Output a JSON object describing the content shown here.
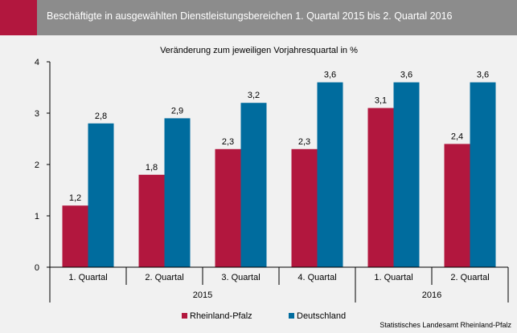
{
  "header": {
    "title": "Beschäftigte in ausgewählten Dienstleistungsbereichen 1. Quartal 2015 bis 2. Quartal 2016"
  },
  "chart_data": {
    "type": "bar",
    "title": "Veränderung zum jeweiligen Vorjahresquartal in %",
    "categories": [
      "1. Quartal",
      "2. Quartal",
      "3. Quartal",
      "4. Quartal",
      "1. Quartal",
      "2. Quartal"
    ],
    "groups": [
      {
        "label": "2015",
        "span": 4
      },
      {
        "label": "2016",
        "span": 2
      }
    ],
    "series": [
      {
        "name": "Rheinland-Pfalz",
        "color": "#b2173e",
        "values": [
          1.2,
          1.8,
          2.3,
          2.3,
          3.1,
          2.4
        ],
        "labels": [
          "1,2",
          "1,8",
          "2,3",
          "2,3",
          "3,1",
          "2,4"
        ]
      },
      {
        "name": "Deutschland",
        "color": "#006c9e",
        "values": [
          2.8,
          2.9,
          3.2,
          3.6,
          3.6,
          3.6
        ],
        "labels": [
          "2,8",
          "2,9",
          "3,2",
          "3,6",
          "3,6",
          "3,6"
        ]
      }
    ],
    "ylim": [
      0,
      4
    ],
    "yticks": [
      "0",
      "1",
      "2",
      "3",
      "4"
    ],
    "grid": false,
    "legend": "bottom-center"
  },
  "footer": {
    "source": "Statistisches Landesamt Rheinland-Pfalz"
  }
}
